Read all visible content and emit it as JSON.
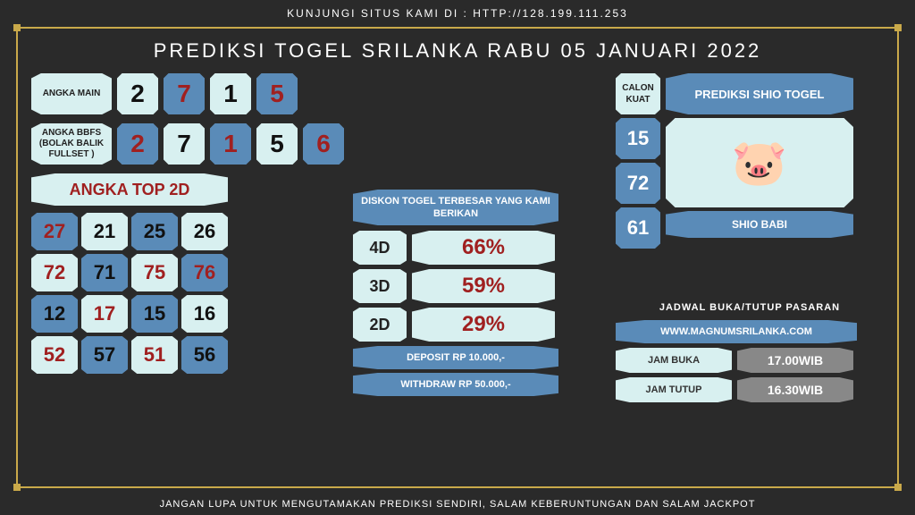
{
  "header": "KUNJUNGI SITUS KAMI DI : HTTP://128.199.111.253",
  "title": "PREDIKSI TOGEL SRILANKA RABU 05 JANUARI 2022",
  "footer": "JANGAN LUPA UNTUK MENGUTAMAKAN PREDIKSI SENDIRI, SALAM KEBERUNTUNGAN DAN SALAM JACKPOT",
  "colors": {
    "light": "#d8f0f0",
    "blue": "#5a8bb8",
    "dark_text": "#111111",
    "red_text": "#a02020",
    "gray": "#888888"
  },
  "angka_main": {
    "label": "ANGKA MAIN",
    "items": [
      {
        "v": "2",
        "bg": "#d8f0f0",
        "fg": "#111111"
      },
      {
        "v": "7",
        "bg": "#5a8bb8",
        "fg": "#a02020"
      },
      {
        "v": "1",
        "bg": "#d8f0f0",
        "fg": "#111111"
      },
      {
        "v": "5",
        "bg": "#5a8bb8",
        "fg": "#a02020"
      }
    ]
  },
  "angka_bbfs": {
    "label": "ANGKA BBFS (BOLAK BALIK FULLSET )",
    "items": [
      {
        "v": "2",
        "bg": "#5a8bb8",
        "fg": "#a02020"
      },
      {
        "v": "7",
        "bg": "#d8f0f0",
        "fg": "#111111"
      },
      {
        "v": "1",
        "bg": "#5a8bb8",
        "fg": "#a02020"
      },
      {
        "v": "5",
        "bg": "#d8f0f0",
        "fg": "#111111"
      },
      {
        "v": "6",
        "bg": "#5a8bb8",
        "fg": "#a02020"
      }
    ]
  },
  "top2d": {
    "header": "ANGKA TOP 2D",
    "cells": [
      {
        "v": "27",
        "bg": "#5a8bb8",
        "fg": "#a02020"
      },
      {
        "v": "21",
        "bg": "#d8f0f0",
        "fg": "#111111"
      },
      {
        "v": "25",
        "bg": "#5a8bb8",
        "fg": "#111111"
      },
      {
        "v": "26",
        "bg": "#d8f0f0",
        "fg": "#111111"
      },
      {
        "v": "72",
        "bg": "#d8f0f0",
        "fg": "#a02020"
      },
      {
        "v": "71",
        "bg": "#5a8bb8",
        "fg": "#111111"
      },
      {
        "v": "75",
        "bg": "#d8f0f0",
        "fg": "#a02020"
      },
      {
        "v": "76",
        "bg": "#5a8bb8",
        "fg": "#a02020"
      },
      {
        "v": "12",
        "bg": "#5a8bb8",
        "fg": "#111111"
      },
      {
        "v": "17",
        "bg": "#d8f0f0",
        "fg": "#a02020"
      },
      {
        "v": "15",
        "bg": "#5a8bb8",
        "fg": "#111111"
      },
      {
        "v": "16",
        "bg": "#d8f0f0",
        "fg": "#111111"
      },
      {
        "v": "52",
        "bg": "#d8f0f0",
        "fg": "#a02020"
      },
      {
        "v": "57",
        "bg": "#5a8bb8",
        "fg": "#111111"
      },
      {
        "v": "51",
        "bg": "#d8f0f0",
        "fg": "#a02020"
      },
      {
        "v": "56",
        "bg": "#5a8bb8",
        "fg": "#111111"
      }
    ]
  },
  "diskon": {
    "header": "DISKON TOGEL TERBESAR YANG KAMI BERIKAN",
    "rows": [
      {
        "label": "4D",
        "value": "66%"
      },
      {
        "label": "3D",
        "value": "59%"
      },
      {
        "label": "2D",
        "value": "29%"
      }
    ],
    "deposit": "DEPOSIT RP 10.000,-",
    "withdraw": "WITHDRAW RP 50.000,-"
  },
  "shio": {
    "calon_label": "CALON KUAT",
    "header": "PREDIKSI SHIO TOGEL",
    "numbers": [
      "15",
      "72",
      "61"
    ],
    "name": "SHIO BABI",
    "emoji": "🐷"
  },
  "jadwal": {
    "header": "JADWAL BUKA/TUTUP PASARAN",
    "site": "WWW.MAGNUMSRILANKA.COM",
    "rows": [
      {
        "label": "JAM BUKA",
        "value": "17.00WIB"
      },
      {
        "label": "JAM TUTUP",
        "value": "16.30WIB"
      }
    ]
  }
}
